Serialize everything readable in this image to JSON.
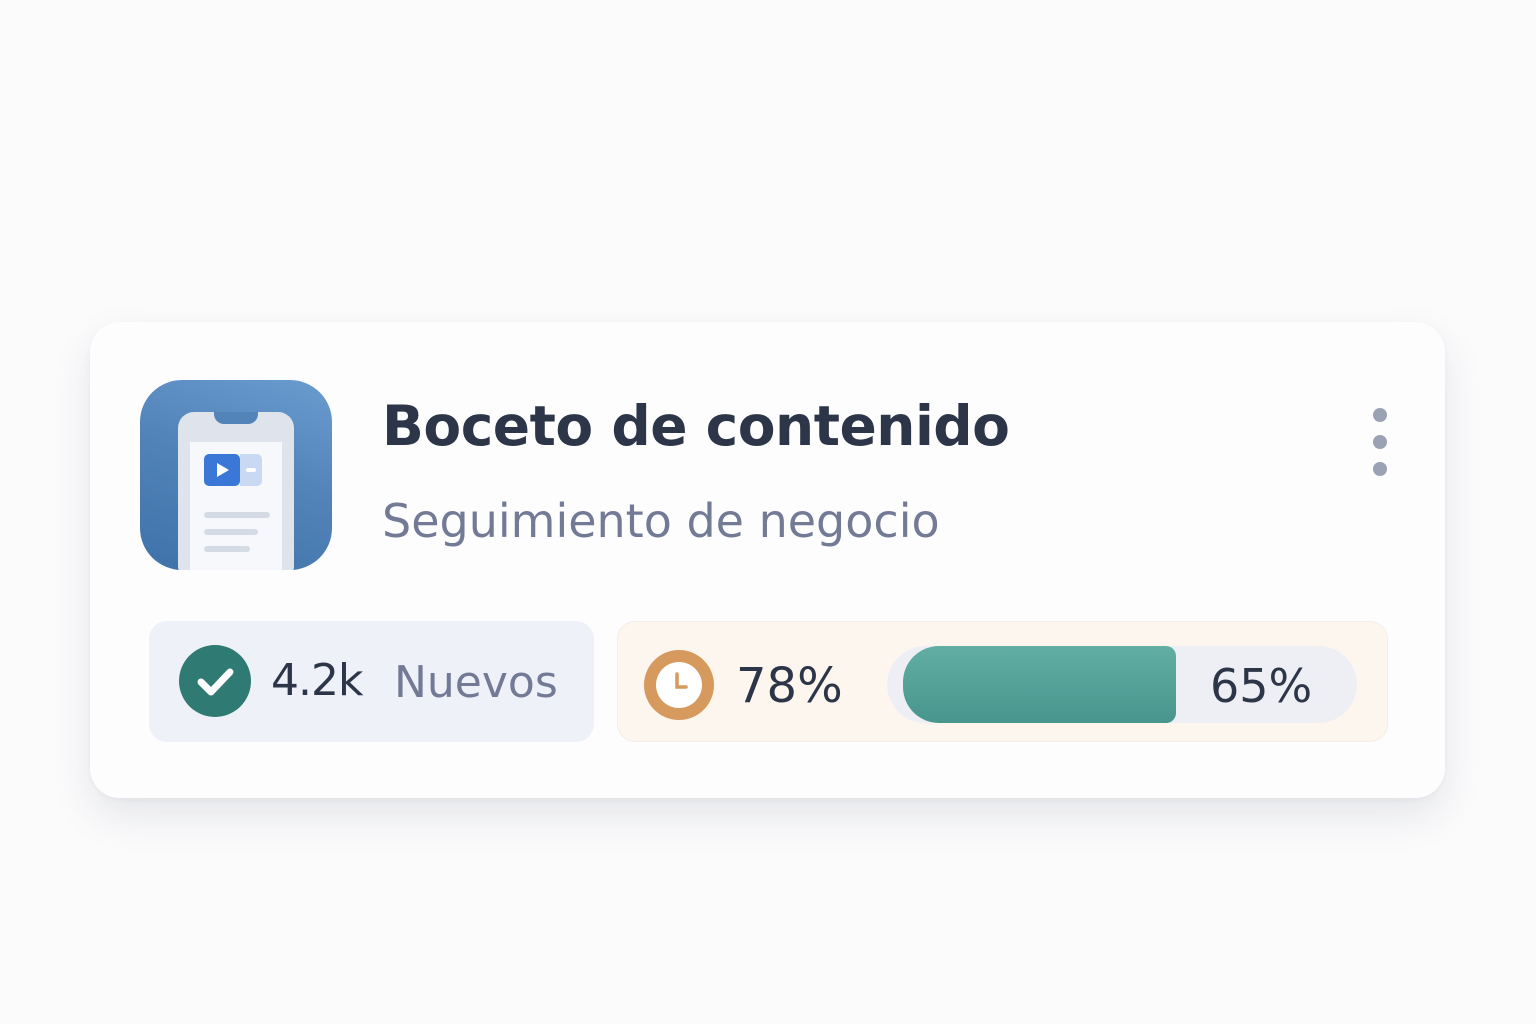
{
  "card": {
    "app_icon": "mobile-content-video-icon",
    "title": "Boceto de contenido",
    "subtitle": "Seguimiento de negocio",
    "menu_icon": "more-vertical-icon"
  },
  "stats": {
    "new": {
      "icon": "check-circle-icon",
      "value": "4.2k",
      "label": "Nuevos",
      "color": "#2f7a72"
    },
    "time": {
      "icon": "clock-icon",
      "value": "78%",
      "color": "#d69a5f"
    },
    "progress": {
      "label": "65%",
      "percent": 65,
      "color": "#5aa8a0"
    }
  }
}
